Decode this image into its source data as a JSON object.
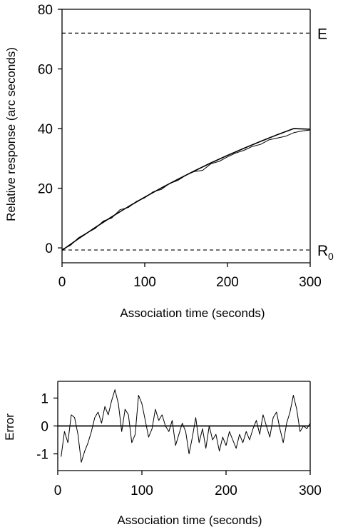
{
  "chart_data": [
    {
      "type": "line",
      "xlabel": "Association time (seconds)",
      "ylabel": "Relative response (arc seconds)",
      "xlim": [
        0,
        300
      ],
      "ylim": [
        -5,
        80
      ],
      "xticks": [
        "0",
        "100",
        "200",
        "300"
      ],
      "yticks": [
        "0",
        "20",
        "40",
        "60",
        "80"
      ],
      "grid": false,
      "series": [
        {
          "style": "solid-smooth",
          "x": [
            0,
            20,
            40,
            60,
            80,
            100,
            120,
            140,
            160,
            180,
            200,
            220,
            240,
            260,
            280,
            300
          ],
          "y": [
            -0.8,
            3.1,
            6.8,
            10.4,
            13.8,
            17.0,
            20.1,
            23.0,
            25.8,
            28.5,
            31.0,
            33.4,
            35.7,
            37.9,
            40.0,
            39.8
          ]
        },
        {
          "style": "solid-noisy",
          "x": [
            0,
            10,
            20,
            30,
            40,
            50,
            60,
            70,
            80,
            90,
            100,
            110,
            120,
            130,
            140,
            150,
            160,
            170,
            180,
            190,
            200,
            210,
            220,
            230,
            240,
            250,
            260,
            270,
            280,
            290,
            300
          ],
          "y": [
            -0.5,
            0.8,
            3.4,
            5.0,
            6.5,
            9.0,
            10.0,
            12.8,
            13.5,
            15.6,
            16.8,
            18.8,
            19.6,
            21.6,
            22.6,
            24.4,
            25.6,
            26.0,
            28.2,
            29.0,
            30.5,
            31.8,
            32.7,
            34.0,
            34.7,
            36.2,
            36.8,
            37.4,
            38.6,
            39.2,
            39.5
          ]
        }
      ],
      "reference_lines": [
        {
          "label": "E",
          "y": 72,
          "style": "dashed"
        },
        {
          "label": "R",
          "subscript": "0",
          "y": -0.7,
          "style": "dashed"
        }
      ]
    },
    {
      "type": "line",
      "xlabel": "Association time (seconds)",
      "ylabel": "Error",
      "xlim": [
        0,
        300
      ],
      "ylim": [
        -1.6,
        1.6
      ],
      "xticks": [
        "0",
        "100",
        "200",
        "300"
      ],
      "yticks": [
        "-1",
        "0",
        "1"
      ],
      "grid": false,
      "zero_line": true,
      "series": [
        {
          "style": "solid",
          "x": [
            4,
            8,
            12,
            16,
            20,
            24,
            28,
            32,
            36,
            40,
            44,
            48,
            52,
            56,
            60,
            64,
            68,
            72,
            76,
            80,
            84,
            88,
            92,
            96,
            100,
            104,
            108,
            112,
            116,
            120,
            124,
            128,
            132,
            136,
            140,
            144,
            148,
            152,
            156,
            160,
            164,
            168,
            172,
            176,
            180,
            184,
            188,
            192,
            196,
            200,
            204,
            208,
            212,
            216,
            220,
            224,
            228,
            232,
            236,
            240,
            244,
            248,
            252,
            256,
            260,
            264,
            268,
            272,
            276,
            280,
            284,
            288,
            292,
            296,
            300
          ],
          "y": [
            -1.1,
            -0.2,
            -0.6,
            0.4,
            0.3,
            -0.3,
            -1.3,
            -0.9,
            -0.6,
            -0.2,
            0.3,
            0.5,
            0.1,
            0.7,
            0.4,
            0.9,
            1.3,
            0.8,
            -0.2,
            0.6,
            0.4,
            -0.6,
            -0.3,
            1.1,
            0.8,
            0.2,
            -0.4,
            -0.1,
            0.6,
            0.2,
            0.4,
            0.0,
            -0.2,
            0.2,
            -0.7,
            -0.3,
            0.1,
            -0.2,
            -1.0,
            -0.4,
            0.3,
            -0.6,
            -0.1,
            -0.8,
            0.0,
            -0.5,
            -0.3,
            -0.9,
            -0.4,
            -0.7,
            -0.2,
            -0.5,
            -0.8,
            -0.3,
            -0.6,
            -0.2,
            -0.5,
            -0.1,
            0.2,
            -0.3,
            0.4,
            0.0,
            -0.4,
            0.3,
            0.5,
            -0.1,
            -0.6,
            0.1,
            0.5,
            1.1,
            0.6,
            -0.2,
            0.0,
            -0.1,
            0.1
          ]
        }
      ]
    }
  ]
}
